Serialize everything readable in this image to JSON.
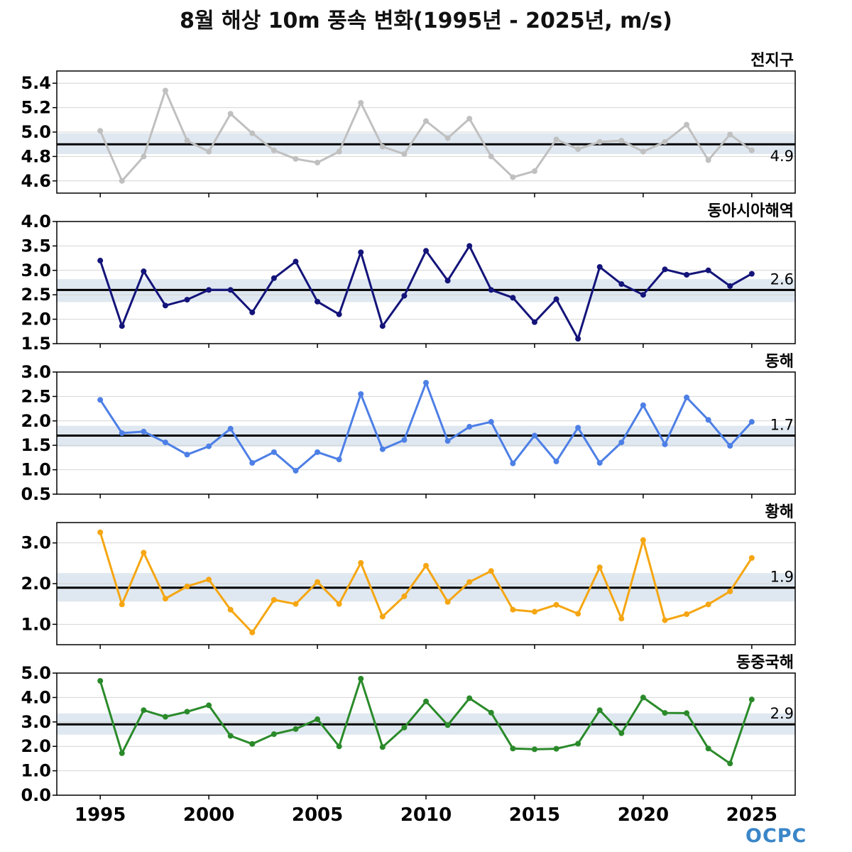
{
  "title": "8월 해상 10m 풍속 변화(1995년 - 2025년, m/s)",
  "logo": "OCPC",
  "colors": {
    "global": "#c0c0c0",
    "east_asia": "#14147a",
    "east_sea": "#4d7fe6",
    "yellow_sea": "#f5a612",
    "east_china_sea": "#2a8a2a",
    "band": "#dfe8f1",
    "mean_line": "#000000"
  },
  "chart_data": [
    {
      "type": "line",
      "panel_label": "전지구",
      "color_key": "global",
      "x": [
        1995,
        1996,
        1997,
        1998,
        1999,
        2000,
        2001,
        2002,
        2003,
        2004,
        2005,
        2006,
        2007,
        2008,
        2009,
        2010,
        2011,
        2012,
        2013,
        2014,
        2015,
        2016,
        2017,
        2018,
        2019,
        2020,
        2021,
        2022,
        2023,
        2024,
        2025
      ],
      "values": [
        5.01,
        4.6,
        4.8,
        5.34,
        4.93,
        4.84,
        5.15,
        4.99,
        4.85,
        4.78,
        4.75,
        4.84,
        5.24,
        4.88,
        4.82,
        5.09,
        4.95,
        5.11,
        4.8,
        4.63,
        4.68,
        4.94,
        4.86,
        4.92,
        4.93,
        4.84,
        4.92,
        5.06,
        4.77,
        4.98,
        4.85
      ],
      "mean": 4.9,
      "mean_label": "4.9",
      "band": [
        4.82,
        4.99
      ],
      "ylim": [
        4.5,
        5.5
      ],
      "yticks": [
        4.6,
        4.8,
        5.0,
        5.2,
        5.4
      ],
      "ytick_labels": [
        "4.6",
        "4.8",
        "5.0",
        "5.2",
        "5.4"
      ]
    },
    {
      "type": "line",
      "panel_label": "동아시아해역",
      "color_key": "east_asia",
      "x": [
        1995,
        1996,
        1997,
        1998,
        1999,
        2000,
        2001,
        2002,
        2003,
        2004,
        2005,
        2006,
        2007,
        2008,
        2009,
        2010,
        2011,
        2012,
        2013,
        2014,
        2015,
        2016,
        2017,
        2018,
        2019,
        2020,
        2021,
        2022,
        2023,
        2024,
        2025
      ],
      "values": [
        3.2,
        1.86,
        2.98,
        2.28,
        2.4,
        2.6,
        2.6,
        2.14,
        2.84,
        3.18,
        2.36,
        2.1,
        3.37,
        1.86,
        2.48,
        3.4,
        2.79,
        3.5,
        2.6,
        2.44,
        1.94,
        2.41,
        1.6,
        3.07,
        2.72,
        2.5,
        3.02,
        2.91,
        3.0,
        2.68,
        2.93
      ],
      "mean": 2.6,
      "mean_label": "2.6",
      "band": [
        2.35,
        2.82
      ],
      "ylim": [
        1.5,
        4.0
      ],
      "yticks": [
        1.5,
        2.0,
        2.5,
        3.0,
        3.5,
        4.0
      ],
      "ytick_labels": [
        "1.5",
        "2.0",
        "2.5",
        "3.0",
        "3.5",
        "4.0"
      ]
    },
    {
      "type": "line",
      "panel_label": "동해",
      "color_key": "east_sea",
      "x": [
        1995,
        1996,
        1997,
        1998,
        1999,
        2000,
        2001,
        2002,
        2003,
        2004,
        2005,
        2006,
        2007,
        2008,
        2009,
        2010,
        2011,
        2012,
        2013,
        2014,
        2015,
        2016,
        2017,
        2018,
        2019,
        2020,
        2021,
        2022,
        2023,
        2024,
        2025
      ],
      "values": [
        2.43,
        1.75,
        1.78,
        1.56,
        1.31,
        1.48,
        1.84,
        1.14,
        1.36,
        0.98,
        1.36,
        1.21,
        2.55,
        1.42,
        1.61,
        2.78,
        1.59,
        1.88,
        1.98,
        1.13,
        1.7,
        1.17,
        1.86,
        1.14,
        1.56,
        2.32,
        1.52,
        2.48,
        2.02,
        1.49,
        1.98
      ],
      "mean": 1.7,
      "mean_label": "1.7",
      "band": [
        1.47,
        1.9
      ],
      "ylim": [
        0.5,
        3.0
      ],
      "yticks": [
        0.5,
        1.0,
        1.5,
        2.0,
        2.5,
        3.0
      ],
      "ytick_labels": [
        "0.5",
        "1.0",
        "1.5",
        "2.0",
        "2.5",
        "3.0"
      ]
    },
    {
      "type": "line",
      "panel_label": "황해",
      "color_key": "yellow_sea",
      "x": [
        1995,
        1996,
        1997,
        1998,
        1999,
        2000,
        2001,
        2002,
        2003,
        2004,
        2005,
        2006,
        2007,
        2008,
        2009,
        2010,
        2011,
        2012,
        2013,
        2014,
        2015,
        2016,
        2017,
        2018,
        2019,
        2020,
        2021,
        2022,
        2023,
        2024,
        2025
      ],
      "values": [
        3.26,
        1.49,
        2.76,
        1.63,
        1.93,
        2.1,
        1.36,
        0.8,
        1.6,
        1.5,
        2.04,
        1.5,
        2.51,
        1.19,
        1.69,
        2.44,
        1.55,
        2.04,
        2.31,
        1.36,
        1.31,
        1.48,
        1.26,
        2.4,
        1.14,
        3.07,
        1.1,
        1.25,
        1.49,
        1.81,
        2.63
      ],
      "mean": 1.9,
      "mean_label": "1.9",
      "band": [
        1.56,
        2.26
      ],
      "ylim": [
        0.5,
        3.5
      ],
      "yticks": [
        1.0,
        2.0,
        3.0
      ],
      "ytick_labels": [
        "1.0",
        "2.0",
        "3.0"
      ]
    },
    {
      "type": "line",
      "panel_label": "동중국해",
      "color_key": "east_china_sea",
      "x": [
        1995,
        1996,
        1997,
        1998,
        1999,
        2000,
        2001,
        2002,
        2003,
        2004,
        2005,
        2006,
        2007,
        2008,
        2009,
        2010,
        2011,
        2012,
        2013,
        2014,
        2015,
        2016,
        2017,
        2018,
        2019,
        2020,
        2021,
        2022,
        2023,
        2024,
        2025
      ],
      "values": [
        4.68,
        1.72,
        3.48,
        3.21,
        3.42,
        3.68,
        2.43,
        2.1,
        2.5,
        2.71,
        3.11,
        2.0,
        4.77,
        1.97,
        2.77,
        3.84,
        2.87,
        3.97,
        3.38,
        1.91,
        1.88,
        1.9,
        2.11,
        3.48,
        2.54,
        4.0,
        3.37,
        3.36,
        1.91,
        1.3,
        3.92
      ],
      "mean": 2.9,
      "mean_label": "2.9",
      "band": [
        2.48,
        3.35
      ],
      "ylim": [
        0.0,
        5.0
      ],
      "yticks": [
        0.0,
        1.0,
        2.0,
        3.0,
        4.0,
        5.0
      ],
      "ytick_labels": [
        "0.0",
        "1.0",
        "2.0",
        "3.0",
        "4.0",
        "5.0"
      ]
    }
  ],
  "x_axis": {
    "xlim": [
      1993,
      2027
    ],
    "ticks": [
      1995,
      2000,
      2005,
      2010,
      2015,
      2020,
      2025
    ],
    "tick_labels": [
      "1995",
      "2000",
      "2005",
      "2010",
      "2015",
      "2020",
      "2025"
    ],
    "grid": false
  },
  "y_grid": true
}
